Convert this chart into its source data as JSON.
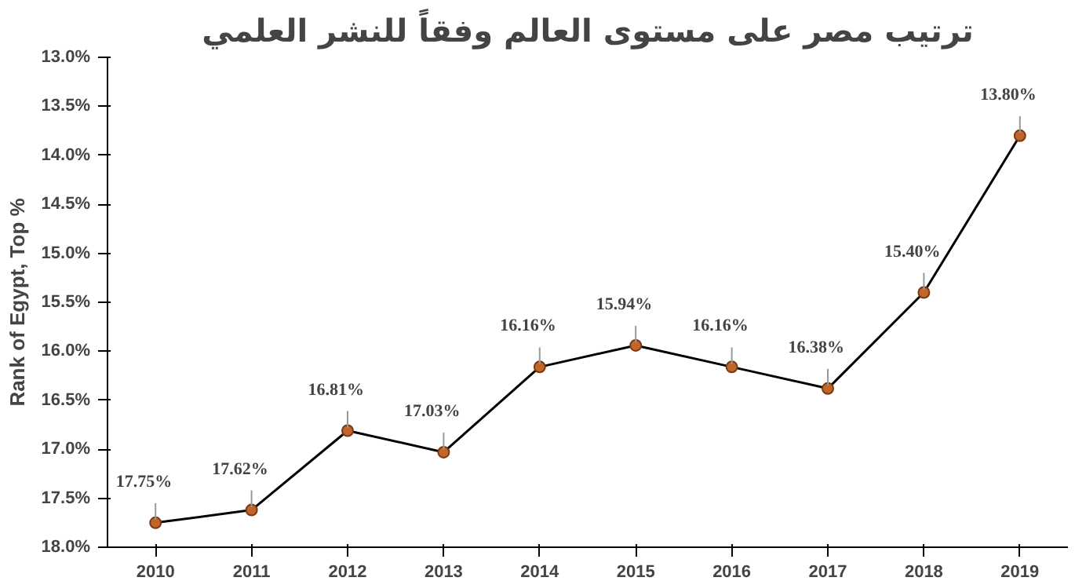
{
  "chart_data": {
    "type": "line",
    "title": "ترتيب مصر على مستوى العالم وفقاً للنشر العلمي",
    "ylabel": "Rank of Egypt, Top %",
    "categories": [
      "2010",
      "2011",
      "2012",
      "2013",
      "2014",
      "2015",
      "2016",
      "2017",
      "2018",
      "2019"
    ],
    "series": [
      {
        "color": "#000000",
        "values": [
          17.75,
          17.62,
          16.81,
          17.03,
          16.16,
          15.94,
          16.16,
          16.38,
          15.4,
          13.8
        ],
        "value_labels": [
          "17.75%",
          "17.62%",
          "16.81%",
          "17.03%",
          "16.16%",
          "15.94%",
          "16.16%",
          "16.38%",
          "15.40%",
          "13.80%"
        ]
      }
    ],
    "ylim": [
      18.0,
      13.0
    ],
    "yticks": [
      {
        "value": 13.0,
        "label": "13.0%"
      },
      {
        "value": 13.5,
        "label": "13.5%"
      },
      {
        "value": 14.0,
        "label": "14.0%"
      },
      {
        "value": 14.5,
        "label": "14.5%"
      },
      {
        "value": 15.0,
        "label": "15.0%"
      },
      {
        "value": 15.5,
        "label": "15.5%"
      },
      {
        "value": 16.0,
        "label": "16.0%"
      },
      {
        "value": 16.5,
        "label": "16.5%"
      },
      {
        "value": 17.0,
        "label": "17.0%"
      },
      {
        "value": 17.5,
        "label": "17.5%"
      },
      {
        "value": 18.0,
        "label": "18.0%"
      }
    ],
    "marker": "circle",
    "grid": false,
    "line_style": "solid"
  }
}
